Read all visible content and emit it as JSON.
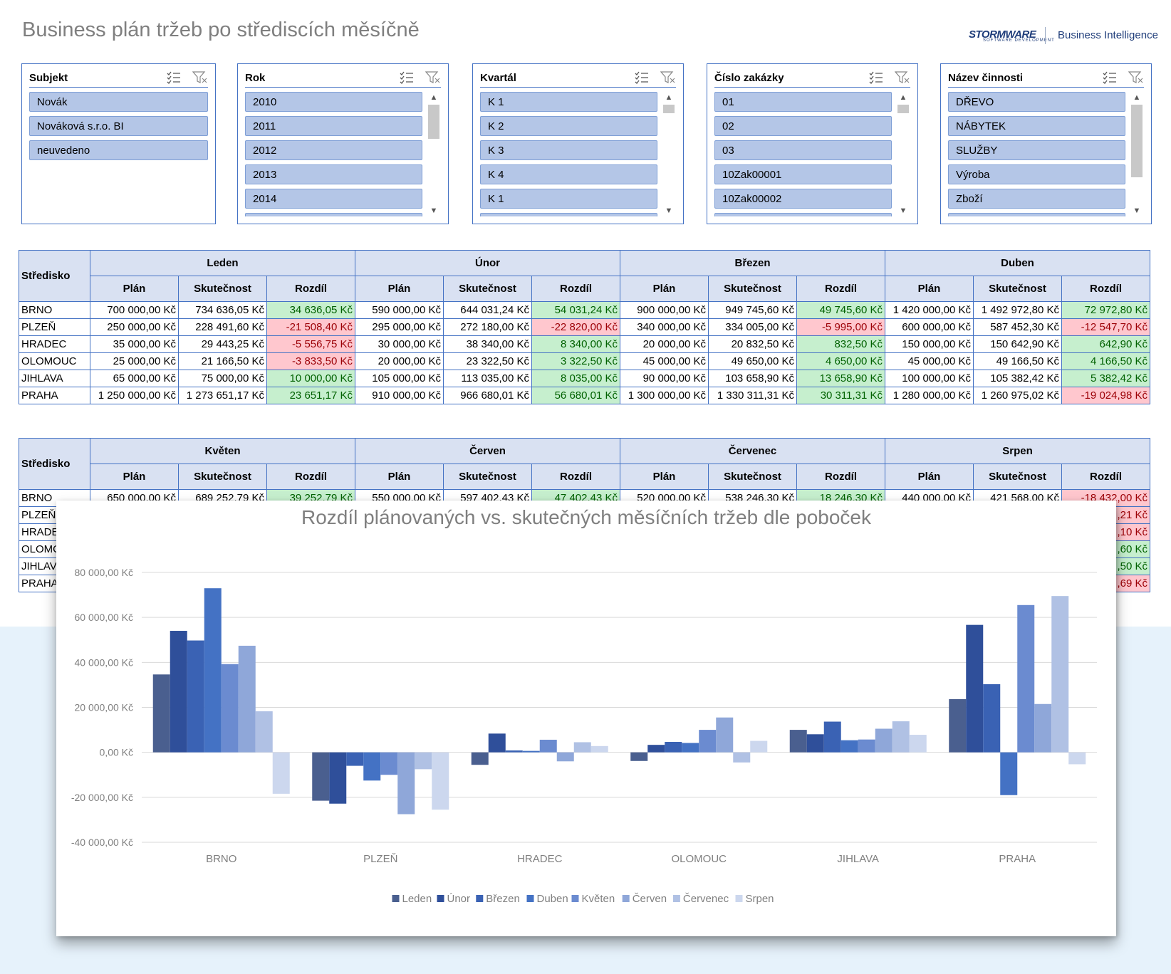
{
  "header": {
    "title": "Business plán tržeb po střediscích měsíčně",
    "logo_text": "STORMWARE",
    "logo_subtext": "SOFTWARE DEVELOPMENT",
    "bi_label": "Business Intelligence"
  },
  "slicers": [
    {
      "title": "Subjekt",
      "items": [
        "Novák",
        "Nováková s.r.o. BI",
        "neuvedeno"
      ]
    },
    {
      "title": "Rok",
      "items": [
        "2010",
        "2011",
        "2012",
        "2013",
        "2014",
        ""
      ]
    },
    {
      "title": "Kvartál",
      "items": [
        "K 1",
        "K 2",
        "K 3",
        "K 4",
        "K 1",
        ""
      ]
    },
    {
      "title": "Číslo zakázky",
      "items": [
        "01",
        "02",
        "03",
        "10Zak00001",
        "10Zak00002",
        ""
      ]
    },
    {
      "title": "Název činnosti",
      "items": [
        "DŘEVO",
        "NÁBYTEK",
        "SLUŽBY",
        "Výroba",
        "Zboží",
        ""
      ]
    }
  ],
  "table1": {
    "corner": "Středisko",
    "months": [
      "Leden",
      "Únor",
      "Březen",
      "Duben"
    ],
    "subheaders": [
      "Plán",
      "Skutečnost",
      "Rozdíl"
    ],
    "rows": [
      [
        "BRNO",
        "700 000,00 Kč",
        "734 636,05 Kč",
        "34 636,05 Kč",
        "590 000,00 Kč",
        "644 031,24 Kč",
        "54 031,24 Kč",
        "900 000,00 Kč",
        "949 745,60 Kč",
        "49 745,60 Kč",
        "1 420 000,00 Kč",
        "1 492 972,80 Kč",
        "72 972,80 Kč"
      ],
      [
        "PLZEŇ",
        "250 000,00 Kč",
        "228 491,60 Kč",
        "-21 508,40 Kč",
        "295 000,00 Kč",
        "272 180,00 Kč",
        "-22 820,00 Kč",
        "340 000,00 Kč",
        "334 005,00 Kč",
        "-5 995,00 Kč",
        "600 000,00 Kč",
        "587 452,30 Kč",
        "-12 547,70 Kč"
      ],
      [
        "HRADEC",
        "35 000,00 Kč",
        "29 443,25 Kč",
        "-5 556,75 Kč",
        "30 000,00 Kč",
        "38 340,00 Kč",
        "8 340,00 Kč",
        "20 000,00 Kč",
        "20 832,50 Kč",
        "832,50 Kč",
        "150 000,00 Kč",
        "150 642,90 Kč",
        "642,90 Kč"
      ],
      [
        "OLOMOUC",
        "25 000,00 Kč",
        "21 166,50 Kč",
        "-3 833,50 Kč",
        "20 000,00 Kč",
        "23 322,50 Kč",
        "3 322,50 Kč",
        "45 000,00 Kč",
        "49 650,00 Kč",
        "4 650,00 Kč",
        "45 000,00 Kč",
        "49 166,50 Kč",
        "4 166,50 Kč"
      ],
      [
        "JIHLAVA",
        "65 000,00 Kč",
        "75 000,00 Kč",
        "10 000,00 Kč",
        "105 000,00 Kč",
        "113 035,00 Kč",
        "8 035,00 Kč",
        "90 000,00 Kč",
        "103 658,90 Kč",
        "13 658,90 Kč",
        "100 000,00 Kč",
        "105 382,42 Kč",
        "5 382,42 Kč"
      ],
      [
        "PRAHA",
        "1 250 000,00 Kč",
        "1 273 651,17 Kč",
        "23 651,17 Kč",
        "910 000,00 Kč",
        "966 680,01 Kč",
        "56 680,01 Kč",
        "1 300 000,00 Kč",
        "1 330 311,31 Kč",
        "30 311,31 Kč",
        "1 280 000,00 Kč",
        "1 260 975,02 Kč",
        "-19 024,98 Kč"
      ]
    ]
  },
  "table2": {
    "corner": "Středisko",
    "months": [
      "Květen",
      "Červen",
      "Červenec",
      "Srpen"
    ],
    "subheaders": [
      "Plán",
      "Skutečnost",
      "Rozdíl"
    ],
    "rows": [
      [
        "BRNO",
        "650 000,00 Kč",
        "689 252,79 Kč",
        "39 252,79 Kč",
        "550 000,00 Kč",
        "597 402,43 Kč",
        "47 402,43 Kč",
        "520 000,00 Kč",
        "538 246,30 Kč",
        "18 246,30 Kč",
        "440 000,00 Kč",
        "421 568,00 Kč",
        "-18 432,00 Kč"
      ],
      [
        "PLZEŇ",
        "",
        "",
        "",
        "",
        "",
        "",
        "",
        "",
        "",
        "",
        "",
        ",21 Kč"
      ],
      [
        "HRADEC",
        "",
        "",
        "",
        "",
        "",
        "",
        "",
        "",
        "",
        "",
        "",
        ",10 Kč"
      ],
      [
        "OLOMOUC",
        "",
        "",
        "",
        "",
        "",
        "",
        "",
        "",
        "",
        "",
        "",
        ",60 Kč"
      ],
      [
        "JIHLAVA",
        "",
        "",
        "",
        "",
        "",
        "",
        "",
        "",
        "",
        "",
        "",
        ",50 Kč"
      ],
      [
        "PRAHA",
        "",
        "",
        "",
        "",
        "",
        "",
        "",
        "",
        "",
        "",
        "",
        ",69 Kč"
      ]
    ]
  },
  "chart_data": {
    "type": "bar",
    "title": "Rozdíl plánovaných vs. skutečných měsíčních tržeb dle poboček",
    "categories": [
      "BRNO",
      "PLZEŇ",
      "HRADEC",
      "OLOMOUC",
      "JIHLAVA",
      "PRAHA"
    ],
    "ylim": [
      -40000,
      80000
    ],
    "yticks": [
      80000,
      60000,
      40000,
      20000,
      0,
      -20000,
      -40000
    ],
    "ytick_labels": [
      "80 000,00 Kč",
      "60 000,00 Kč",
      "40 000,00 Kč",
      "20 000,00 Kč",
      "0,00 Kč",
      "-20 000,00 Kč",
      "-40 000,00 Kč"
    ],
    "grid": true,
    "legend_position": "bottom",
    "series": [
      {
        "name": "Leden",
        "color": "#4a5f8f",
        "values": [
          34636.05,
          -21508.4,
          -5556.75,
          -3833.5,
          10000.0,
          23651.17
        ]
      },
      {
        "name": "Únor",
        "color": "#2f4f9a",
        "values": [
          54031.24,
          -22820.0,
          8340.0,
          3322.5,
          8035.0,
          56680.01
        ]
      },
      {
        "name": "Březen",
        "color": "#3a62b4",
        "values": [
          49745.6,
          -5995.0,
          832.5,
          4650.0,
          13658.9,
          30311.31
        ]
      },
      {
        "name": "Duben",
        "color": "#4472c4",
        "values": [
          72972.8,
          -12547.7,
          642.9,
          4166.5,
          5382.42,
          -19024.98
        ]
      },
      {
        "name": "Květen",
        "color": "#6b8bd0",
        "values": [
          39252.79,
          -10000,
          5600,
          10000,
          5700,
          65500
        ]
      },
      {
        "name": "Červen",
        "color": "#8fa7d9",
        "values": [
          47402.43,
          -27500,
          -4000,
          15500,
          10500,
          21500
        ]
      },
      {
        "name": "Červenec",
        "color": "#b0c1e4",
        "values": [
          18246.3,
          -7500,
          4500,
          -4500,
          13800,
          69500
        ]
      },
      {
        "name": "Srpen",
        "color": "#ccd7ee",
        "values": [
          -18432.0,
          -25500,
          2800,
          5100,
          7800,
          -5300
        ]
      }
    ]
  }
}
